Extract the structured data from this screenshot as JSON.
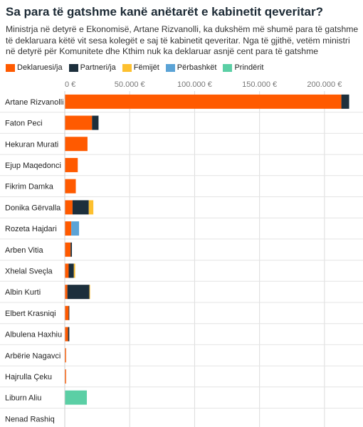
{
  "title": "Sa para të gatshme kanë anëtarët e kabinetit qeveritar?",
  "subtitle": "Ministrja në detyrë e Ekonomisë, Artane Rizvanolli, ka dukshëm më shumë para të gatshme të deklaruara këtë vit sesa kolegët e saj të kabinetit qeveritar. Nga të gjithë, vetëm ministri në detyrë për Komunitete dhe Kthim nuk ka deklaruar asnjë cent para të gatshme",
  "colors": {
    "deklaruesi": "#ff5a00",
    "partneri": "#1c2f3c",
    "femijet": "#fdc02f",
    "perbashket": "#5ba3d6",
    "prinderit": "#5bcfa5"
  },
  "chart_data": {
    "type": "bar",
    "orientation": "horizontal",
    "stacked": true,
    "categories": [
      "Artane Rizvanolli",
      "Faton Peci",
      "Hekuran Murati",
      "Ejup Maqedonci",
      "Fikrim Damka",
      "Donika Gërvalla",
      "Rozeta Hajdari",
      "Arben Vitia",
      "Xhelal Sveçla",
      "Albin Kurti",
      "Elbert Krasniqi",
      "Albulena Haxhiu",
      "Arbërie Nagavci",
      "Hajrulla Çeku",
      "Liburn Aliu",
      "Nenad Rashiq"
    ],
    "series": [
      {
        "name": "Deklaruesi/ja",
        "key": "deklaruesi",
        "values": [
          213000,
          21000,
          17500,
          10000,
          8500,
          6000,
          5000,
          4500,
          3000,
          2000,
          3000,
          2500,
          1000,
          1000,
          0,
          0
        ]
      },
      {
        "name": "Partneri/ja",
        "key": "partneri",
        "values": [
          6000,
          5000,
          0,
          0,
          0,
          12500,
          0,
          1000,
          4000,
          17000,
          500,
          1000,
          0,
          0,
          0,
          0
        ]
      },
      {
        "name": "Fëmijët",
        "key": "femijet",
        "values": [
          0,
          0,
          0,
          0,
          0,
          3500,
          0,
          0,
          1000,
          500,
          0,
          0,
          0,
          0,
          0,
          0
        ]
      },
      {
        "name": "Përbashkët",
        "key": "perbashket",
        "values": [
          0,
          0,
          0,
          0,
          0,
          0,
          6000,
          0,
          0,
          0,
          0,
          0,
          0,
          0,
          0,
          0
        ]
      },
      {
        "name": "Prindërit",
        "key": "prinderit",
        "values": [
          0,
          0,
          0,
          0,
          0,
          0,
          0,
          0,
          0,
          0,
          0,
          0,
          0,
          0,
          17000,
          0
        ]
      }
    ],
    "x_ticks": [
      0,
      50000,
      100000,
      150000,
      200000
    ],
    "x_tick_labels": [
      "0 €",
      "50.000 €",
      "100.000 €",
      "150.000 €",
      "200.000 €"
    ],
    "xlim": [
      0,
      222000
    ],
    "grid": true,
    "legend_position": "top-left"
  }
}
